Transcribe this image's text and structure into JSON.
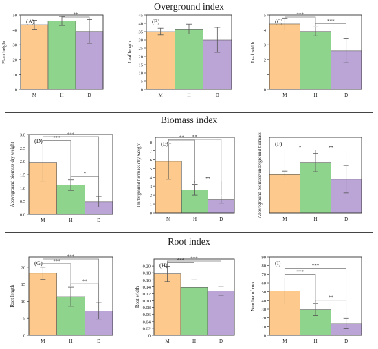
{
  "sections": [
    {
      "title": "Overground index"
    },
    {
      "title": "Biomass index"
    },
    {
      "title": "Root index"
    }
  ],
  "colors": {
    "M": "#fdc98c",
    "H": "#8fd48d",
    "D": "#bba5d6"
  },
  "chart_data": [
    {
      "type": "bar",
      "panel": "(A)",
      "ylabel": "Plant height",
      "categories": [
        "M",
        "H",
        "D"
      ],
      "values": [
        43.5,
        46,
        39
      ],
      "errors": [
        3,
        3,
        8
      ],
      "ylim": [
        0,
        50
      ],
      "yticks": [
        "0",
        "10",
        "20",
        "30",
        "40",
        "50"
      ],
      "significance": [
        {
          "pair": [
            "H",
            "D"
          ],
          "label": "**"
        }
      ]
    },
    {
      "type": "bar",
      "panel": "(B)",
      "ylabel": "Leaf length",
      "categories": [
        "M",
        "H",
        "D"
      ],
      "values": [
        35,
        36.5,
        30
      ],
      "errors": [
        2,
        3,
        7.5
      ],
      "ylim": [
        0,
        45
      ],
      "yticks": [
        "0",
        "5",
        "10",
        "15",
        "20",
        "25",
        "30",
        "35",
        "40",
        "45"
      ],
      "significance": []
    },
    {
      "type": "bar",
      "panel": "(C)",
      "ylabel": "Leaf width",
      "categories": [
        "M",
        "H",
        "D"
      ],
      "values": [
        4.4,
        3.9,
        2.6
      ],
      "errors": [
        0.4,
        0.3,
        0.8
      ],
      "ylim": [
        0,
        5
      ],
      "yticks": [
        "0",
        "1",
        "2",
        "3",
        "4",
        "5"
      ],
      "significance": [
        {
          "pair": [
            "M",
            "H"
          ],
          "label": "***"
        },
        {
          "pair": [
            "H",
            "D"
          ],
          "label": "***"
        }
      ]
    },
    {
      "type": "bar",
      "panel": "(D)",
      "ylabel": "Aboveground biomass dry weight",
      "categories": [
        "M",
        "H",
        "D"
      ],
      "values": [
        1.95,
        1.1,
        0.47
      ],
      "errors": [
        0.7,
        0.2,
        0.2
      ],
      "ylim": [
        0,
        3.0
      ],
      "yticks": [
        "0.0",
        "0.5",
        "1.0",
        "1.5",
        "2.0",
        "2.5",
        "3.0"
      ],
      "significance": [
        {
          "pair": [
            "M",
            "H"
          ],
          "label": "***"
        },
        {
          "pair": [
            "H",
            "D"
          ],
          "label": "*"
        },
        {
          "pair": [
            "M",
            "D"
          ],
          "label": "***"
        }
      ]
    },
    {
      "type": "bar",
      "panel": "(E)",
      "ylabel": "Underground biomass dry weight",
      "categories": [
        "M",
        "H",
        "D"
      ],
      "values": [
        5.8,
        2.6,
        1.5
      ],
      "errors": [
        2.0,
        0.6,
        0.4
      ],
      "ylim": [
        0,
        8.5
      ],
      "yticks": [
        "0",
        "1",
        "2",
        "3",
        "4",
        "5",
        "6",
        "7",
        "8"
      ],
      "significance": [
        {
          "pair": [
            "M",
            "H"
          ],
          "label": "**"
        },
        {
          "pair": [
            "H",
            "D"
          ],
          "label": "**"
        },
        {
          "pair": [
            "M",
            "D"
          ],
          "label": "**"
        }
      ]
    },
    {
      "type": "bar",
      "panel": "(F)",
      "ylabel": "Aboveground biomass/underground biomass",
      "categories": [
        "M",
        "H",
        "D"
      ],
      "values": [
        0.34,
        0.44,
        0.295
      ],
      "errors": [
        0.025,
        0.08,
        0.12
      ],
      "ylim": [
        0,
        0.66
      ],
      "yticks": [],
      "significance": [
        {
          "pair": [
            "M",
            "H"
          ],
          "label": "*"
        },
        {
          "pair": [
            "H",
            "D"
          ],
          "label": "**"
        }
      ]
    },
    {
      "type": "bar",
      "panel": "(G)",
      "ylabel": "Root length",
      "categories": [
        "M",
        "H",
        "D"
      ],
      "values": [
        18.2,
        11.3,
        7.2
      ],
      "errors": [
        1.8,
        2.8,
        2.5
      ],
      "ylim": [
        0,
        23
      ],
      "yticks": [
        "0",
        "5",
        "10",
        "15",
        "20"
      ],
      "significance": [
        {
          "pair": [
            "M",
            "H"
          ],
          "label": "***"
        },
        {
          "pair": [
            "H",
            "D"
          ],
          "label": "**"
        },
        {
          "pair": [
            "M",
            "D"
          ],
          "label": "***"
        }
      ]
    },
    {
      "type": "bar",
      "panel": "(H)",
      "ylabel": "Root width",
      "categories": [
        "M",
        "H",
        "D"
      ],
      "values": [
        0.177,
        0.138,
        0.128
      ],
      "errors": [
        0.022,
        0.022,
        0.013
      ],
      "ylim": [
        0,
        0.22
      ],
      "yticks": [
        "0",
        "0.02",
        "0.04",
        "0.06",
        "0.08",
        "0.10",
        "0.12",
        "0.14",
        "0.16",
        "0.18",
        "0.20"
      ],
      "significance": [
        {
          "pair": [
            "M",
            "H"
          ],
          "label": "***"
        },
        {
          "pair": [
            "M",
            "D"
          ],
          "label": "***"
        }
      ]
    },
    {
      "type": "bar",
      "panel": "(I)",
      "ylabel": "Number of root",
      "categories": [
        "M",
        "H",
        "D"
      ],
      "values": [
        51,
        29.5,
        13.5
      ],
      "errors": [
        15,
        7,
        6
      ],
      "ylim": [
        0,
        90
      ],
      "yticks": [
        "0",
        "10",
        "20",
        "30",
        "40",
        "50",
        "60",
        "70",
        "80",
        "90"
      ],
      "significance": [
        {
          "pair": [
            "M",
            "H"
          ],
          "label": "***"
        },
        {
          "pair": [
            "H",
            "D"
          ],
          "label": "**"
        },
        {
          "pair": [
            "M",
            "D"
          ],
          "label": "***"
        }
      ]
    }
  ]
}
